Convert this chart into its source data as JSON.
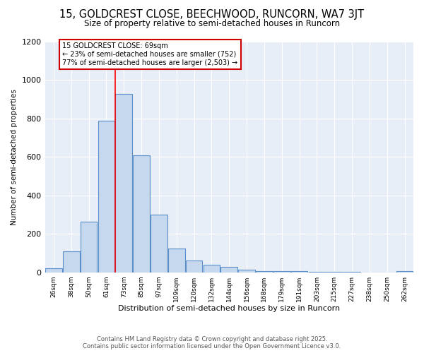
{
  "title_line1": "15, GOLDCREST CLOSE, BEECHWOOD, RUNCORN, WA7 3JT",
  "title_line2": "Size of property relative to semi-detached houses in Runcorn",
  "xlabel": "Distribution of semi-detached houses by size in Runcorn",
  "ylabel": "Number of semi-detached properties",
  "categories": [
    "26sqm",
    "38sqm",
    "50sqm",
    "61sqm",
    "73sqm",
    "85sqm",
    "97sqm",
    "109sqm",
    "120sqm",
    "132sqm",
    "144sqm",
    "156sqm",
    "168sqm",
    "179sqm",
    "191sqm",
    "203sqm",
    "215sqm",
    "227sqm",
    "238sqm",
    "250sqm",
    "262sqm"
  ],
  "values": [
    20,
    110,
    265,
    790,
    930,
    610,
    300,
    125,
    60,
    38,
    30,
    15,
    8,
    6,
    6,
    2,
    1,
    1,
    0,
    0,
    8
  ],
  "bar_color": "#c5d8ee",
  "bar_edge_color": "#5b8fc9",
  "redline_x": 4.0,
  "annotation_title": "15 GOLDCREST CLOSE: 69sqm",
  "annotation_line2": "← 23% of semi-detached houses are smaller (752)",
  "annotation_line3": "77% of semi-detached houses are larger (2,503) →",
  "annotation_box_color": "#ffffff",
  "annotation_box_edge": "#cc0000",
  "ylim": [
    0,
    1200
  ],
  "yticks": [
    0,
    200,
    400,
    600,
    800,
    1000,
    1200
  ],
  "bg_color": "#e8eef8",
  "footer_line1": "Contains HM Land Registry data © Crown copyright and database right 2025.",
  "footer_line2": "Contains public sector information licensed under the Open Government Licence v3.0."
}
